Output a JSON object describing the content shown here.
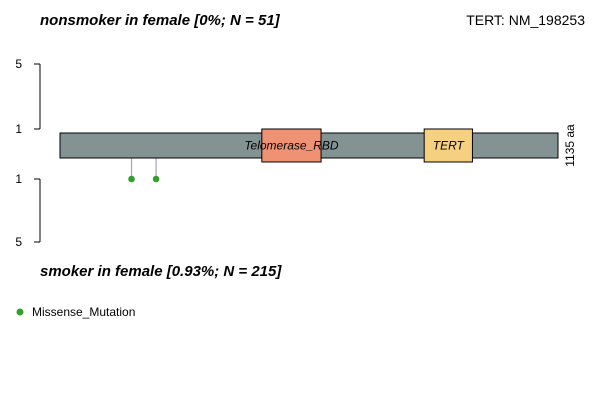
{
  "chart_data": {
    "type": "lollipop",
    "top_title": "nonsmoker in female [0%; N = 51]",
    "bottom_title": "smoker in female [0.93%; N = 215]",
    "gene_label": "TERT: NM_198253",
    "protein_length_label": "1135 aa",
    "protein_length": 1135,
    "top_axis": {
      "ticks": [
        "5",
        "1"
      ]
    },
    "bottom_axis": {
      "ticks": [
        "1",
        "5"
      ]
    },
    "domains": [
      {
        "name": "Telomerase_RBD",
        "start": 460,
        "end": 595,
        "color": "#EE9273"
      },
      {
        "name": "TERT",
        "start": 830,
        "end": 940,
        "color": "#F5D080"
      }
    ],
    "backbone_color": "#839393",
    "mutations_bottom": [
      {
        "position": 163,
        "count": 1,
        "type": "Missense_Mutation"
      },
      {
        "position": 219,
        "count": 1,
        "type": "Missense_Mutation"
      }
    ],
    "mutations_top": [],
    "legend": [
      {
        "label": "Missense_Mutation",
        "color": "#33A02C"
      }
    ]
  }
}
